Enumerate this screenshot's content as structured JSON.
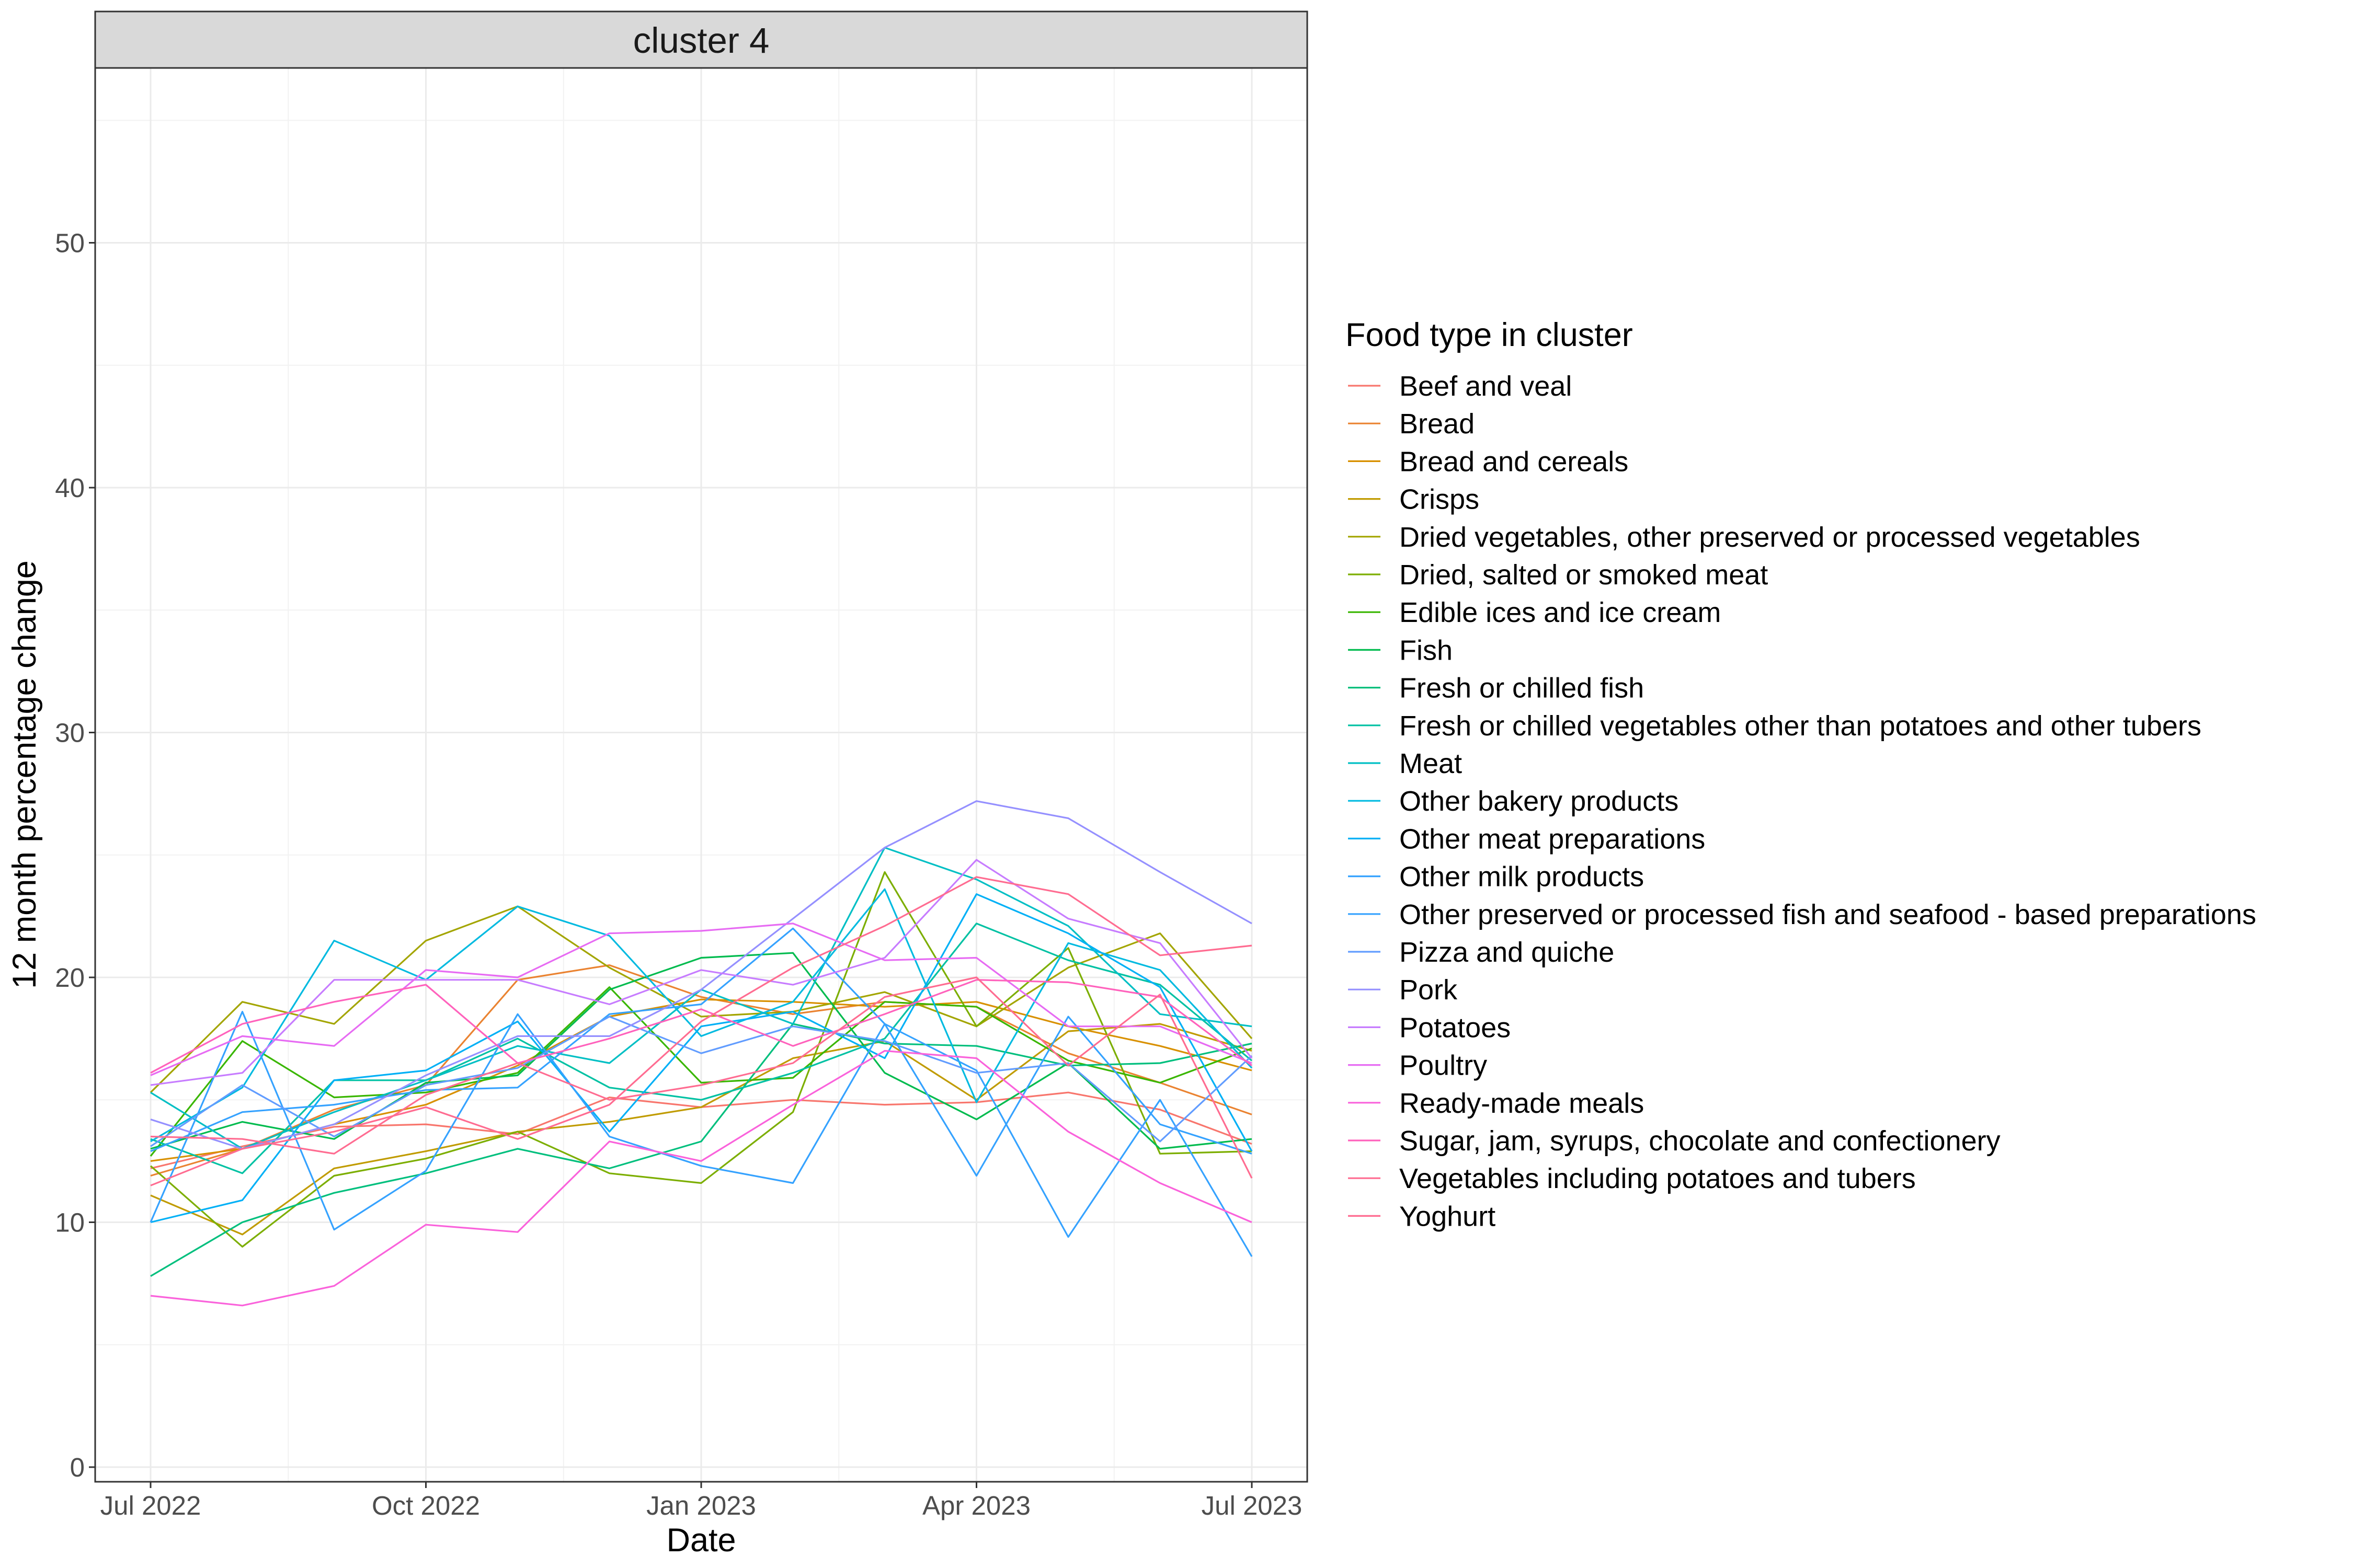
{
  "chart_data": {
    "type": "line",
    "facet_label": "cluster 4",
    "xlabel": "Date",
    "ylabel": "12 month percentage change",
    "x_ticks": [
      "Jul 2022",
      "Oct 2022",
      "Jan 2023",
      "Apr 2023",
      "Jul 2023"
    ],
    "y_ticks": [
      0,
      10,
      20,
      30,
      40,
      50
    ],
    "ylim": [
      -0.5,
      57.2
    ],
    "grid": true,
    "legend_position": "right",
    "legend_title": "Food type in cluster",
    "x": [
      "2022-07",
      "2022-08",
      "2022-09",
      "2022-10",
      "2022-11",
      "2022-12",
      "2023-01",
      "2023-02",
      "2023-03",
      "2023-04",
      "2023-05",
      "2023-06",
      "2023-07"
    ],
    "series": [
      {
        "name": "Beef and veal",
        "color": "#F8766D",
        "values": [
          12.2,
          13.1,
          13.9,
          14.0,
          13.6,
          15.1,
          14.7,
          15.0,
          14.8,
          14.9,
          15.3,
          14.6,
          13.2
        ]
      },
      {
        "name": "Bread",
        "color": "#EA8331",
        "values": [
          11.9,
          13.0,
          14.6,
          15.6,
          19.9,
          20.5,
          19.2,
          18.5,
          19.0,
          18.8,
          16.9,
          15.7,
          14.4
        ]
      },
      {
        "name": "Bread and cereals",
        "color": "#D89000",
        "values": [
          12.5,
          13.0,
          14.0,
          14.8,
          16.4,
          18.4,
          19.1,
          19.0,
          18.8,
          19.0,
          18.0,
          17.2,
          16.2
        ]
      },
      {
        "name": "Crisps",
        "color": "#C09B00",
        "values": [
          11.1,
          9.5,
          12.2,
          12.9,
          13.7,
          14.1,
          14.7,
          16.7,
          17.4,
          15.0,
          17.8,
          18.1,
          17.0
        ]
      },
      {
        "name": "Dried vegetables, other preserved or processed vegetables",
        "color": "#A3A500",
        "values": [
          15.3,
          19.0,
          18.1,
          21.5,
          22.9,
          20.4,
          18.4,
          18.6,
          19.4,
          18.0,
          20.4,
          21.8,
          17.5
        ]
      },
      {
        "name": "Dried, salted or smoked meat",
        "color": "#7CAE00",
        "values": [
          12.3,
          9.0,
          11.9,
          12.6,
          13.7,
          12.0,
          11.6,
          14.5,
          24.3,
          18.0,
          21.2,
          12.8,
          12.9
        ]
      },
      {
        "name": "Edible ices and ice cream",
        "color": "#39B600",
        "values": [
          12.7,
          17.4,
          15.1,
          15.3,
          16.1,
          19.6,
          15.7,
          15.9,
          19.0,
          18.8,
          16.6,
          15.7,
          17.1
        ]
      },
      {
        "name": "Fish",
        "color": "#00BB4E",
        "values": [
          13.0,
          14.1,
          13.4,
          15.7,
          16.0,
          19.5,
          20.8,
          21.0,
          16.1,
          14.2,
          16.5,
          13.0,
          13.4
        ]
      },
      {
        "name": "Fresh or chilled fish",
        "color": "#00BF7D",
        "values": [
          7.8,
          10.0,
          11.2,
          12.0,
          13.0,
          12.2,
          13.3,
          18.1,
          17.3,
          17.2,
          16.4,
          16.5,
          17.3
        ]
      },
      {
        "name": "Fresh or chilled vegetables other than potatoes and other tubers",
        "color": "#00C1A3",
        "values": [
          13.4,
          12.0,
          15.8,
          15.8,
          17.5,
          15.5,
          15.0,
          16.1,
          17.5,
          22.2,
          20.7,
          19.7,
          16.6
        ]
      },
      {
        "name": "Meat",
        "color": "#00BFC4",
        "values": [
          15.3,
          13.0,
          14.5,
          15.8,
          17.2,
          16.5,
          19.5,
          18.1,
          25.3,
          24.0,
          22.1,
          18.5,
          18.0
        ]
      },
      {
        "name": "Other bakery products",
        "color": "#00BAE0",
        "values": [
          13.3,
          15.5,
          21.5,
          19.9,
          22.9,
          21.7,
          17.6,
          19.0,
          23.6,
          14.9,
          21.4,
          20.3,
          16.3
        ]
      },
      {
        "name": "Other meat preparations",
        "color": "#00B0F6",
        "values": [
          10.0,
          10.9,
          15.8,
          16.2,
          18.2,
          13.7,
          18.0,
          18.6,
          16.7,
          23.4,
          21.8,
          19.6,
          12.9
        ]
      },
      {
        "name": "Other milk products",
        "color": "#35A2FF",
        "values": [
          12.9,
          14.5,
          14.8,
          15.4,
          15.5,
          18.5,
          18.9,
          22.0,
          18.1,
          11.9,
          18.4,
          14.0,
          12.8
        ]
      },
      {
        "name": "Other preserved or processed fish and seafood  - based preparations",
        "color": "#35A2FF",
        "values": [
          10.0,
          18.6,
          9.7,
          12.1,
          18.5,
          13.5,
          12.3,
          11.6,
          18.1,
          16.2,
          9.4,
          15.0,
          8.6
        ]
      },
      {
        "name": "Pizza and quiche",
        "color": "#619CFF",
        "values": [
          13.1,
          15.6,
          13.5,
          15.6,
          16.3,
          18.4,
          16.9,
          18.0,
          17.4,
          16.1,
          16.5,
          13.3,
          16.8
        ]
      },
      {
        "name": "Pork",
        "color": "#9590FF",
        "values": [
          14.2,
          13.0,
          14.0,
          16.0,
          17.6,
          17.6,
          19.5,
          22.4,
          25.3,
          27.2,
          26.5,
          24.3,
          22.2
        ]
      },
      {
        "name": "Potatoes",
        "color": "#C77CFF",
        "values": [
          15.6,
          16.1,
          19.9,
          19.9,
          19.9,
          18.9,
          20.3,
          19.7,
          20.8,
          24.8,
          22.4,
          21.4,
          16.7
        ]
      },
      {
        "name": "Poultry",
        "color": "#E76BF3",
        "values": [
          16.0,
          17.6,
          17.2,
          20.3,
          20.0,
          21.8,
          21.9,
          22.2,
          20.7,
          20.8,
          18.0,
          18.0,
          16.5
        ]
      },
      {
        "name": "Ready-made meals",
        "color": "#FA62DB",
        "values": [
          7.0,
          6.6,
          7.4,
          9.9,
          9.6,
          13.3,
          12.5,
          14.8,
          17.0,
          16.7,
          13.7,
          11.6,
          10.0
        ]
      },
      {
        "name": "Sugar, jam, syrups, chocolate and confectionery",
        "color": "#FF62BC",
        "values": [
          16.1,
          18.1,
          19.0,
          19.7,
          16.5,
          17.5,
          18.7,
          17.2,
          18.5,
          19.9,
          19.8,
          19.2,
          16.4
        ]
      },
      {
        "name": "Vegetables including potatoes and tubers",
        "color": "#FF6C91",
        "values": [
          13.5,
          13.4,
          12.8,
          15.2,
          16.5,
          15.0,
          15.6,
          16.5,
          19.2,
          20.0,
          16.4,
          19.3,
          11.8
        ]
      },
      {
        "name": "Yoghurt",
        "color": "#FF6C91",
        "values": [
          11.5,
          13.0,
          13.7,
          14.7,
          13.4,
          14.8,
          18.2,
          20.4,
          22.1,
          24.1,
          23.4,
          20.9,
          21.3
        ]
      }
    ],
    "legend_entries": [
      {
        "name": "Beef and veal",
        "color": "#F8766D"
      },
      {
        "name": "Bread",
        "color": "#EA8331"
      },
      {
        "name": "Bread and cereals",
        "color": "#D89000"
      },
      {
        "name": "Crisps",
        "color": "#C09B00"
      },
      {
        "name": "Dried vegetables, other preserved or processed vegetables",
        "color": "#A3A500"
      },
      {
        "name": "Dried, salted or smoked meat",
        "color": "#7CAE00"
      },
      {
        "name": "Edible ices and ice cream",
        "color": "#39B600"
      },
      {
        "name": "Fish",
        "color": "#00BB4E"
      },
      {
        "name": "Fresh or chilled fish",
        "color": "#00BF7D"
      },
      {
        "name": "Fresh or chilled vegetables other than potatoes and other tubers",
        "color": "#00C1A3"
      },
      {
        "name": "Meat",
        "color": "#00BFC4"
      },
      {
        "name": "Other bakery products",
        "color": "#00BAE0"
      },
      {
        "name": "Other meat preparations",
        "color": "#00B0F6"
      },
      {
        "name": "Other milk products",
        "color": "#35A2FF"
      },
      {
        "name": "Other preserved or processed fish and seafood  - based preparations",
        "color": "#35A2FF"
      },
      {
        "name": "Pizza and quiche",
        "color": "#619CFF"
      },
      {
        "name": "Pork",
        "color": "#9590FF"
      },
      {
        "name": "Potatoes",
        "color": "#C77CFF"
      },
      {
        "name": "Poultry",
        "color": "#E76BF3"
      },
      {
        "name": "Ready-made meals",
        "color": "#FA62DB"
      },
      {
        "name": "Sugar, jam, syrups, chocolate and confectionery",
        "color": "#FF62BC"
      },
      {
        "name": "Vegetables including potatoes and tubers",
        "color": "#FF6C91"
      },
      {
        "name": "Yoghurt",
        "color": "#FF6C91"
      }
    ]
  }
}
